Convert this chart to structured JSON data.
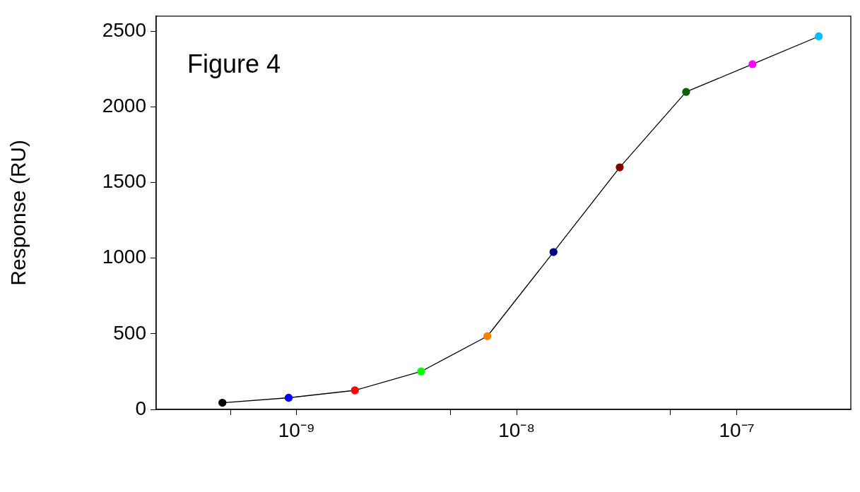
{
  "chart_data": {
    "type": "line",
    "ylabel": "Response (RU)",
    "x": [
      4.6e-10,
      9.2e-10,
      1.84e-09,
      3.68e-09,
      7.36e-09,
      1.47e-08,
      2.94e-08,
      5.89e-08,
      1.18e-07,
      2.36e-07
    ],
    "series": [
      {
        "color": "#000000",
        "colors": [
          "#000000",
          "#0000ff",
          "#ff0000",
          "#00ff00",
          "#ff8000",
          "#000080",
          "#800000",
          "#006400",
          "#ff00ff",
          "#00bfff"
        ],
        "values": [
          44,
          77,
          126,
          251,
          484,
          1040,
          1600,
          2099,
          2282,
          2466
        ]
      }
    ],
    "log": "x",
    "xlim": [
      2.3e-10,
      3.3e-07
    ],
    "xticks": [
      {
        "value": 5e-10,
        "label": null
      },
      {
        "value": 1e-09,
        "label": "10⁻⁹"
      },
      {
        "value": 5e-09,
        "label": null
      },
      {
        "value": 1e-08,
        "label": "10⁻⁸"
      },
      {
        "value": 5e-08,
        "label": null
      },
      {
        "value": 1e-07,
        "label": "10⁻⁷"
      }
    ],
    "ylim": [
      0,
      2600
    ],
    "yticks": [
      0,
      500,
      1000,
      1500,
      2000,
      2500
    ],
    "annotations": [
      "Figure 4"
    ],
    "grid": false,
    "legend": false,
    "marker": "circle",
    "line_style": "solid"
  }
}
